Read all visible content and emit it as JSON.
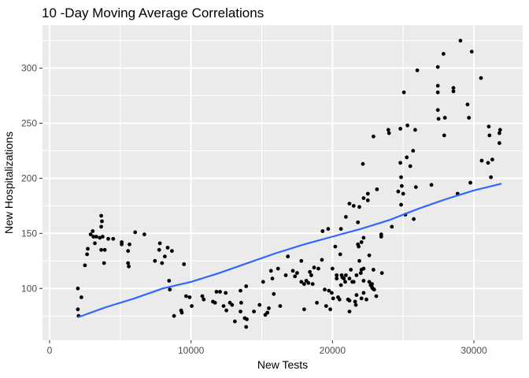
{
  "page": {
    "background": "#FFFFFF"
  },
  "chart_data": {
    "type": "scatter",
    "title": "10 -Day Moving Average Correlations",
    "xlabel": "New Tests",
    "ylabel": "New Hospitalizations",
    "x_ticks": [
      0,
      10000,
      20000,
      30000
    ],
    "x_tick_labels": [
      "0",
      "10000",
      "20000",
      "30000"
    ],
    "x_minor_ticks": [
      5000,
      15000,
      25000
    ],
    "y_ticks": [
      100,
      150,
      200,
      250,
      300
    ],
    "y_tick_labels": [
      "100",
      "150",
      "200",
      "250",
      "300"
    ],
    "y_minor_ticks": [
      75,
      125,
      175,
      225,
      275,
      325
    ],
    "xlim": [
      -500,
      33450
    ],
    "ylim": [
      53,
      339
    ],
    "grid": "major and minor, white on gray panel",
    "legend": "none",
    "panel_background": "#EBEBEB",
    "grid_color": "#FFFFFF",
    "point_color": "#000000",
    "smooth_color": "#3366FF",
    "axis_text_color": "#4D4D4D",
    "tick_mark_color": "#333333",
    "smooth_line": [
      [
        2050,
        74
      ],
      [
        4000,
        83
      ],
      [
        6000,
        91
      ],
      [
        8000,
        100
      ],
      [
        10000,
        106
      ],
      [
        12000,
        114
      ],
      [
        14000,
        123
      ],
      [
        16000,
        132
      ],
      [
        18000,
        140
      ],
      [
        20000,
        147
      ],
      [
        22000,
        154
      ],
      [
        24000,
        162
      ],
      [
        26000,
        172
      ],
      [
        28000,
        181
      ],
      [
        30000,
        189
      ],
      [
        31900,
        195
      ]
    ],
    "points": [
      [
        2000,
        100
      ],
      [
        2250,
        92
      ],
      [
        2000,
        81
      ],
      [
        2050,
        75
      ],
      [
        2500,
        121
      ],
      [
        2650,
        131
      ],
      [
        2700,
        136
      ],
      [
        2900,
        149
      ],
      [
        3050,
        152
      ],
      [
        3100,
        147
      ],
      [
        3200,
        141
      ],
      [
        3300,
        147
      ],
      [
        3550,
        146
      ],
      [
        3650,
        156
      ],
      [
        3650,
        166
      ],
      [
        3650,
        135
      ],
      [
        3700,
        161
      ],
      [
        3750,
        147
      ],
      [
        3850,
        123
      ],
      [
        3900,
        135
      ],
      [
        4150,
        145
      ],
      [
        4500,
        145
      ],
      [
        5100,
        142
      ],
      [
        5100,
        140
      ],
      [
        5550,
        134
      ],
      [
        5550,
        123
      ],
      [
        5600,
        120
      ],
      [
        5650,
        140
      ],
      [
        6050,
        151
      ],
      [
        6700,
        149
      ],
      [
        7450,
        125
      ],
      [
        7750,
        135
      ],
      [
        7800,
        141
      ],
      [
        7950,
        123
      ],
      [
        8150,
        129
      ],
      [
        8350,
        137
      ],
      [
        8450,
        107
      ],
      [
        8500,
        99
      ],
      [
        8650,
        134
      ],
      [
        8800,
        75
      ],
      [
        9300,
        80
      ],
      [
        9350,
        78
      ],
      [
        9500,
        122
      ],
      [
        9650,
        93
      ],
      [
        9900,
        92
      ],
      [
        10050,
        84
      ],
      [
        10800,
        93
      ],
      [
        10900,
        90
      ],
      [
        11550,
        88
      ],
      [
        11700,
        87
      ],
      [
        11800,
        97
      ],
      [
        12050,
        97
      ],
      [
        12300,
        84
      ],
      [
        12450,
        96
      ],
      [
        12500,
        80
      ],
      [
        12750,
        87
      ],
      [
        12900,
        85
      ],
      [
        13100,
        70
      ],
      [
        13500,
        98
      ],
      [
        13500,
        79
      ],
      [
        13550,
        87
      ],
      [
        13800,
        73
      ],
      [
        13900,
        102
      ],
      [
        13900,
        65
      ],
      [
        13950,
        72
      ],
      [
        14450,
        79
      ],
      [
        14850,
        85
      ],
      [
        15100,
        106
      ],
      [
        15250,
        76
      ],
      [
        15400,
        78
      ],
      [
        15500,
        82
      ],
      [
        15650,
        116
      ],
      [
        15750,
        109
      ],
      [
        15850,
        95
      ],
      [
        16150,
        118
      ],
      [
        16300,
        84
      ],
      [
        16700,
        112
      ],
      [
        16850,
        129
      ],
      [
        17200,
        116
      ],
      [
        17350,
        111
      ],
      [
        17500,
        114
      ],
      [
        17800,
        125
      ],
      [
        17800,
        106
      ],
      [
        18000,
        104
      ],
      [
        18000,
        81
      ],
      [
        18150,
        107
      ],
      [
        18300,
        105
      ],
      [
        18400,
        115
      ],
      [
        18500,
        112
      ],
      [
        18600,
        104
      ],
      [
        18700,
        119
      ],
      [
        18900,
        87
      ],
      [
        19000,
        118
      ],
      [
        19250,
        126
      ],
      [
        19300,
        152
      ],
      [
        19450,
        99
      ],
      [
        19550,
        84
      ],
      [
        19700,
        154
      ],
      [
        19750,
        98
      ],
      [
        19850,
        81
      ],
      [
        19950,
        96
      ],
      [
        20000,
        118
      ],
      [
        20050,
        91
      ],
      [
        20200,
        138
      ],
      [
        20300,
        112
      ],
      [
        20300,
        109
      ],
      [
        20400,
        92
      ],
      [
        20500,
        90
      ],
      [
        20550,
        131
      ],
      [
        20600,
        154
      ],
      [
        20600,
        103
      ],
      [
        20650,
        112
      ],
      [
        20700,
        110
      ],
      [
        20800,
        109
      ],
      [
        20900,
        106
      ],
      [
        20950,
        165
      ],
      [
        20950,
        112
      ],
      [
        21100,
        90
      ],
      [
        21200,
        177
      ],
      [
        21200,
        109
      ],
      [
        21200,
        89
      ],
      [
        21200,
        79
      ],
      [
        21300,
        117
      ],
      [
        21400,
        106
      ],
      [
        21500,
        175
      ],
      [
        21500,
        106
      ],
      [
        21600,
        88
      ],
      [
        21650,
        85
      ],
      [
        21700,
        94
      ],
      [
        21700,
        112
      ],
      [
        21800,
        160
      ],
      [
        21800,
        140
      ],
      [
        21850,
        138
      ],
      [
        21900,
        174
      ],
      [
        21900,
        125
      ],
      [
        22000,
        114
      ],
      [
        22050,
        142
      ],
      [
        22050,
        117
      ],
      [
        22050,
        91
      ],
      [
        22150,
        213
      ],
      [
        22200,
        146
      ],
      [
        22200,
        118
      ],
      [
        22200,
        107
      ],
      [
        22200,
        96
      ],
      [
        22200,
        182
      ],
      [
        22400,
        90
      ],
      [
        22500,
        186
      ],
      [
        22500,
        180
      ],
      [
        22600,
        130
      ],
      [
        22600,
        106
      ],
      [
        22700,
        103
      ],
      [
        22800,
        104
      ],
      [
        22800,
        101
      ],
      [
        22850,
        100
      ],
      [
        22900,
        238
      ],
      [
        22900,
        117
      ],
      [
        22950,
        99
      ],
      [
        23100,
        93
      ],
      [
        23150,
        190
      ],
      [
        23450,
        147
      ],
      [
        23450,
        149
      ],
      [
        23500,
        114
      ],
      [
        23950,
        244
      ],
      [
        24000,
        241
      ],
      [
        24200,
        156
      ],
      [
        24650,
        188
      ],
      [
        24800,
        214
      ],
      [
        24800,
        245
      ],
      [
        24850,
        201
      ],
      [
        24850,
        176
      ],
      [
        24900,
        193
      ],
      [
        25000,
        186
      ],
      [
        25050,
        278
      ],
      [
        25150,
        167
      ],
      [
        25250,
        219
      ],
      [
        25300,
        248
      ],
      [
        25500,
        211
      ],
      [
        25700,
        225
      ],
      [
        25750,
        163
      ],
      [
        25850,
        244
      ],
      [
        25900,
        192
      ],
      [
        26000,
        298
      ],
      [
        27000,
        194
      ],
      [
        27450,
        301
      ],
      [
        27450,
        284
      ],
      [
        27450,
        278
      ],
      [
        27450,
        262
      ],
      [
        27500,
        254
      ],
      [
        27850,
        313
      ],
      [
        27900,
        239
      ],
      [
        27950,
        255
      ],
      [
        28550,
        282
      ],
      [
        28550,
        279
      ],
      [
        28850,
        186
      ],
      [
        29050,
        325
      ],
      [
        29550,
        267
      ],
      [
        29650,
        255
      ],
      [
        29750,
        196
      ],
      [
        29850,
        315
      ],
      [
        30500,
        291
      ],
      [
        30550,
        216
      ],
      [
        31000,
        214
      ],
      [
        31050,
        247
      ],
      [
        31100,
        239
      ],
      [
        31200,
        201
      ],
      [
        31300,
        217
      ],
      [
        31800,
        241
      ],
      [
        31800,
        232
      ],
      [
        31850,
        244
      ]
    ]
  }
}
